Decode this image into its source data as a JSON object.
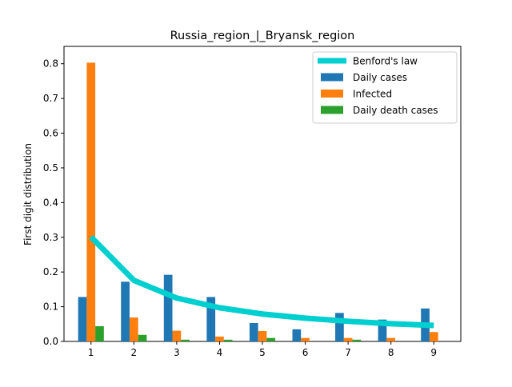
{
  "chart_data": {
    "type": "bar",
    "title": "Russia_region_|_Bryansk_region",
    "xlabel": "",
    "ylabel": "First digit distribution",
    "categories": [
      "1",
      "2",
      "3",
      "4",
      "5",
      "6",
      "7",
      "8",
      "9"
    ],
    "ylim": [
      0,
      0.85
    ],
    "yticks": [
      "0.0",
      "0.1",
      "0.2",
      "0.3",
      "0.4",
      "0.5",
      "0.6",
      "0.7",
      "0.8"
    ],
    "grid": false,
    "legend_position": "top-right",
    "series": [
      {
        "name": "Daily cases",
        "type": "bar",
        "color": "#1f77b4",
        "values": [
          0.128,
          0.172,
          0.192,
          0.128,
          0.053,
          0.035,
          0.082,
          0.063,
          0.095
        ]
      },
      {
        "name": "Infected",
        "type": "bar",
        "color": "#ff7f0e",
        "values": [
          0.803,
          0.069,
          0.031,
          0.014,
          0.03,
          0.01,
          0.01,
          0.01,
          0.027
        ]
      },
      {
        "name": "Daily death cases",
        "type": "bar",
        "color": "#2ca02c",
        "values": [
          0.044,
          0.019,
          0.005,
          0.005,
          0.01,
          0.0,
          0.005,
          0.0,
          0.0
        ]
      },
      {
        "name": "Benford's law",
        "type": "line",
        "color": "#00cfcf",
        "values": [
          0.301,
          0.176,
          0.125,
          0.097,
          0.079,
          0.067,
          0.058,
          0.051,
          0.046
        ]
      }
    ]
  }
}
